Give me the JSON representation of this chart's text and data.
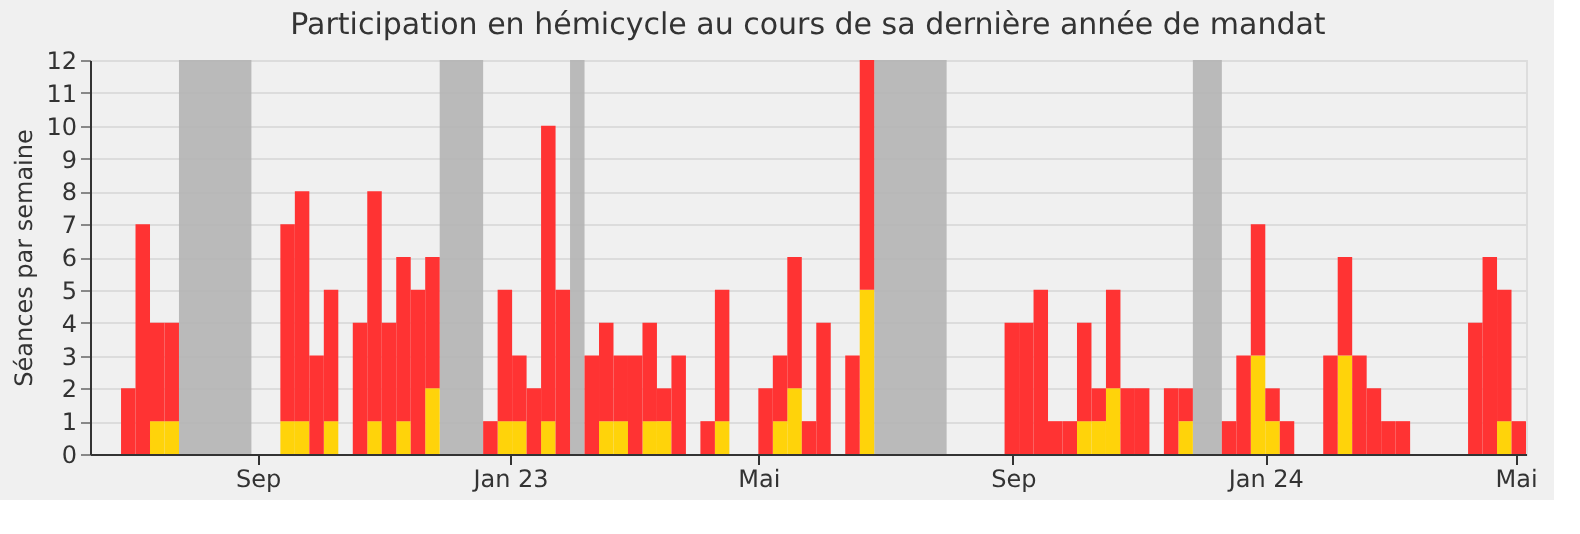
{
  "chart_data": {
    "type": "bar",
    "stacked": true,
    "title": "Participation en hémicycle au cours de sa dernière année de mandat",
    "ylabel": "Séances par semaine",
    "x": [
      "2022-06-27",
      "2022-07-04",
      "2022-07-11",
      "2022-07-18",
      "2022-09-12",
      "2022-09-19",
      "2022-09-26",
      "2022-10-03",
      "2022-10-17",
      "2022-10-24",
      "2022-10-31",
      "2022-11-07",
      "2022-11-14",
      "2022-11-21",
      "2022-12-19",
      "2022-12-26",
      "2023-01-02",
      "2023-01-09",
      "2023-01-16",
      "2023-01-23",
      "2023-02-06",
      "2023-02-13",
      "2023-02-20",
      "2023-02-27",
      "2023-03-06",
      "2023-03-13",
      "2023-03-20",
      "2023-04-03",
      "2023-04-10",
      "2023-05-01",
      "2023-05-08",
      "2023-05-15",
      "2023-05-22",
      "2023-05-29",
      "2023-06-12",
      "2023-06-19",
      "2023-08-28",
      "2023-09-04",
      "2023-09-11",
      "2023-09-18",
      "2023-09-25",
      "2023-10-02",
      "2023-10-09",
      "2023-10-16",
      "2023-10-23",
      "2023-10-30",
      "2023-11-13",
      "2023-11-20",
      "2023-12-11",
      "2023-12-18",
      "2023-12-25",
      "2024-01-01",
      "2024-01-08",
      "2024-01-29",
      "2024-02-05",
      "2024-02-12",
      "2024-02-19",
      "2024-02-26",
      "2024-03-04",
      "2024-04-08",
      "2024-04-15",
      "2024-04-22",
      "2024-04-29"
    ],
    "series": [
      {
        "color": "#ffd30a",
        "values": [
          0,
          0,
          1,
          1,
          1,
          1,
          0,
          1,
          0,
          1,
          0,
          1,
          0,
          2,
          0,
          1,
          1,
          0,
          1,
          0,
          0,
          1,
          1,
          0,
          1,
          1,
          0,
          0,
          1,
          0,
          1,
          2,
          0,
          0,
          0,
          5,
          0,
          0,
          0,
          0,
          0,
          1,
          1,
          2,
          0,
          0,
          0,
          1,
          0,
          0,
          3,
          1,
          0,
          0,
          3,
          0,
          0,
          0,
          0,
          0,
          0,
          1,
          0
        ]
      },
      {
        "color": "#ff3333",
        "values": [
          2,
          7,
          3,
          3,
          6,
          7,
          3,
          4,
          4,
          7,
          4,
          5,
          5,
          4,
          1,
          4,
          2,
          2,
          9,
          5,
          3,
          3,
          2,
          3,
          3,
          1,
          3,
          1,
          4,
          2,
          2,
          4,
          1,
          4,
          3,
          7,
          4,
          4,
          5,
          1,
          1,
          3,
          1,
          3,
          2,
          2,
          2,
          1,
          1,
          3,
          4,
          1,
          1,
          3,
          3,
          3,
          2,
          1,
          1,
          4,
          6,
          4,
          1
        ]
      }
    ],
    "ylim": [
      0,
      12
    ],
    "yticks": [
      0,
      1,
      2,
      3,
      4,
      5,
      6,
      7,
      8,
      9,
      10,
      11,
      12
    ],
    "xlim": [
      "2022-06-12",
      "2024-05-06"
    ],
    "xticks": [
      {
        "value": "2022-09-01",
        "label": "Sep"
      },
      {
        "value": "2023-01-01",
        "label": "Jan 23"
      },
      {
        "value": "2023-05-01",
        "label": "Mai"
      },
      {
        "value": "2023-09-01",
        "label": "Sep"
      },
      {
        "value": "2024-01-01",
        "label": "Jan 24"
      },
      {
        "value": "2024-05-01",
        "label": "Mai"
      }
    ],
    "bands": [
      {
        "axis": "x",
        "from": "2022-07-25",
        "to": "2022-08-29",
        "color": "#b4b4b4"
      },
      {
        "axis": "x",
        "from": "2022-11-28",
        "to": "2022-12-19",
        "color": "#b4b4b4"
      },
      {
        "axis": "x",
        "from": "2023-01-30",
        "to": "2023-02-06",
        "color": "#b4b4b4"
      },
      {
        "axis": "x",
        "from": "2023-06-26",
        "to": "2023-07-31",
        "color": "#b4b4b4"
      },
      {
        "axis": "x",
        "from": "2023-11-27",
        "to": "2023-12-11",
        "color": "#b4b4b4"
      }
    ],
    "grid": "y"
  }
}
